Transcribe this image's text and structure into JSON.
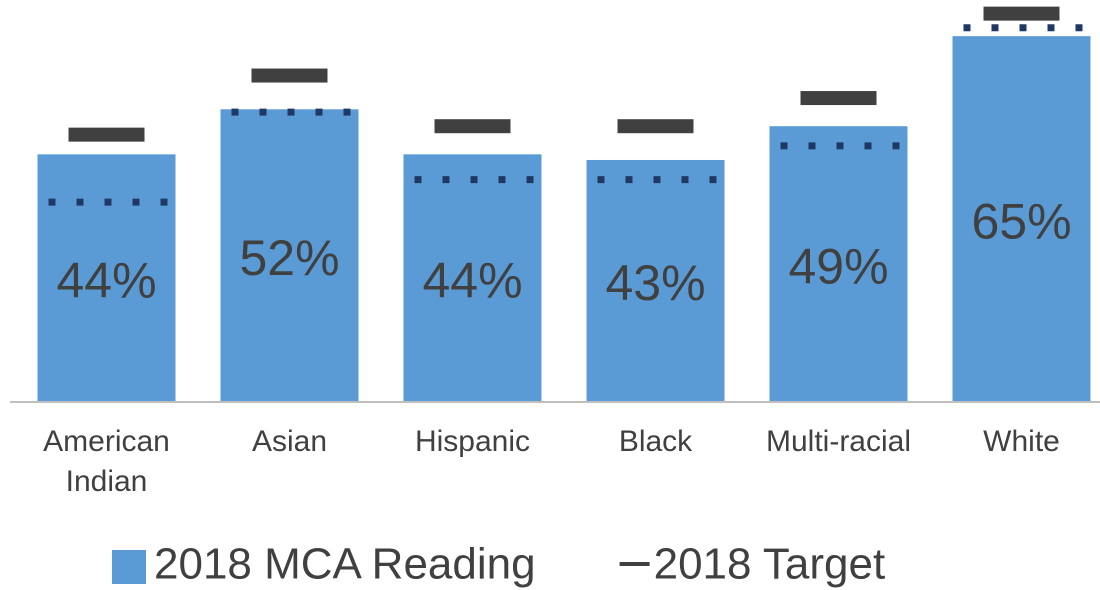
{
  "chart_data": {
    "type": "bar",
    "categories": [
      "American Indian",
      "Asian",
      "Hispanic",
      "Black",
      "Multi-racial",
      "White"
    ],
    "series": [
      {
        "name": "2018 MCA Reading",
        "color": "#5b9bd5",
        "values": [
          44,
          52,
          44,
          43,
          49,
          65
        ],
        "value_labels": [
          "44%",
          "52%",
          "44%",
          "43%",
          "49%",
          "65%"
        ]
      },
      {
        "name": "2018 Target",
        "color": "#404040",
        "values": [
          47.5,
          58,
          49,
          49,
          54,
          69
        ]
      },
      {
        "color": "#1f3864",
        "values": [
          35.5,
          51.5,
          39.5,
          39.5,
          45.5,
          66.5
        ]
      }
    ],
    "ylim": [
      0,
      70
    ]
  }
}
